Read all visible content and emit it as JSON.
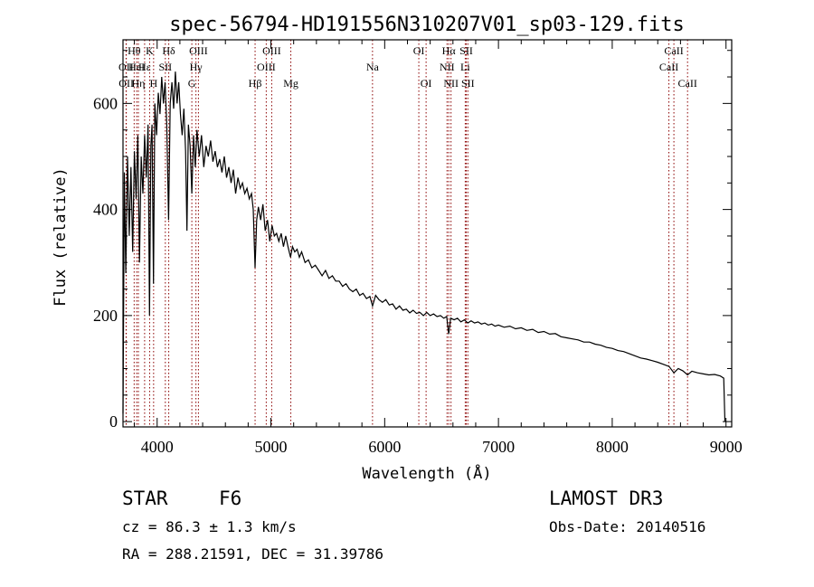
{
  "chart_data": {
    "type": "line",
    "title": "spec-56794-HD191556N310207V01_sp03-129.fits",
    "xlabel": "Wavelength (Å)",
    "ylabel": "Flux (relative)",
    "xlim": [
      3700,
      9050
    ],
    "ylim": [
      -10,
      720
    ],
    "xticks": [
      4000,
      5000,
      6000,
      7000,
      8000,
      9000
    ],
    "yticks": [
      0,
      200,
      400,
      600
    ],
    "x_minor_step": 200,
    "y_minor_step": 50,
    "series": [
      {
        "name": "spectrum",
        "points": [
          [
            3700,
            15
          ],
          [
            3712,
            470
          ],
          [
            3725,
            280
          ],
          [
            3740,
            500
          ],
          [
            3755,
            350
          ],
          [
            3770,
            480
          ],
          [
            3785,
            320
          ],
          [
            3800,
            510
          ],
          [
            3815,
            420
          ],
          [
            3830,
            540
          ],
          [
            3845,
            300
          ],
          [
            3860,
            500
          ],
          [
            3875,
            430
          ],
          [
            3890,
            540
          ],
          [
            3905,
            460
          ],
          [
            3920,
            560
          ],
          [
            3933,
            200
          ],
          [
            3945,
            520
          ],
          [
            3955,
            560
          ],
          [
            3968,
            260
          ],
          [
            3980,
            600
          ],
          [
            3995,
            540
          ],
          [
            4010,
            620
          ],
          [
            4025,
            580
          ],
          [
            4040,
            650
          ],
          [
            4055,
            600
          ],
          [
            4070,
            640
          ],
          [
            4085,
            560
          ],
          [
            4101,
            380
          ],
          [
            4115,
            600
          ],
          [
            4130,
            640
          ],
          [
            4145,
            590
          ],
          [
            4160,
            660
          ],
          [
            4175,
            600
          ],
          [
            4190,
            640
          ],
          [
            4205,
            580
          ],
          [
            4220,
            540
          ],
          [
            4235,
            590
          ],
          [
            4250,
            510
          ],
          [
            4262,
            360
          ],
          [
            4275,
            560
          ],
          [
            4290,
            520
          ],
          [
            4305,
            430
          ],
          [
            4320,
            540
          ],
          [
            4335,
            480
          ],
          [
            4350,
            550
          ],
          [
            4370,
            500
          ],
          [
            4390,
            540
          ],
          [
            4410,
            480
          ],
          [
            4430,
            520
          ],
          [
            4450,
            500
          ],
          [
            4470,
            530
          ],
          [
            4490,
            490
          ],
          [
            4510,
            510
          ],
          [
            4530,
            480
          ],
          [
            4550,
            495
          ],
          [
            4570,
            470
          ],
          [
            4590,
            500
          ],
          [
            4610,
            460
          ],
          [
            4630,
            480
          ],
          [
            4650,
            450
          ],
          [
            4670,
            475
          ],
          [
            4690,
            430
          ],
          [
            4710,
            460
          ],
          [
            4730,
            440
          ],
          [
            4750,
            450
          ],
          [
            4770,
            430
          ],
          [
            4790,
            440
          ],
          [
            4810,
            420
          ],
          [
            4830,
            430
          ],
          [
            4845,
            400
          ],
          [
            4861,
            290
          ],
          [
            4875,
            380
          ],
          [
            4890,
            405
          ],
          [
            4910,
            380
          ],
          [
            4930,
            410
          ],
          [
            4950,
            360
          ],
          [
            4970,
            380
          ],
          [
            4990,
            340
          ],
          [
            5010,
            370
          ],
          [
            5030,
            350
          ],
          [
            5050,
            355
          ],
          [
            5070,
            340
          ],
          [
            5090,
            355
          ],
          [
            5110,
            330
          ],
          [
            5130,
            350
          ],
          [
            5150,
            330
          ],
          [
            5172,
            310
          ],
          [
            5190,
            330
          ],
          [
            5210,
            320
          ],
          [
            5230,
            325
          ],
          [
            5250,
            310
          ],
          [
            5270,
            320
          ],
          [
            5300,
            300
          ],
          [
            5330,
            305
          ],
          [
            5360,
            290
          ],
          [
            5390,
            295
          ],
          [
            5420,
            285
          ],
          [
            5450,
            275
          ],
          [
            5480,
            285
          ],
          [
            5510,
            270
          ],
          [
            5540,
            275
          ],
          [
            5570,
            265
          ],
          [
            5600,
            265
          ],
          [
            5630,
            255
          ],
          [
            5660,
            260
          ],
          [
            5690,
            250
          ],
          [
            5720,
            245
          ],
          [
            5750,
            250
          ],
          [
            5780,
            238
          ],
          [
            5810,
            242
          ],
          [
            5840,
            232
          ],
          [
            5870,
            236
          ],
          [
            5893,
            218
          ],
          [
            5920,
            238
          ],
          [
            5950,
            230
          ],
          [
            5980,
            225
          ],
          [
            6010,
            230
          ],
          [
            6040,
            220
          ],
          [
            6070,
            222
          ],
          [
            6100,
            212
          ],
          [
            6130,
            218
          ],
          [
            6160,
            210
          ],
          [
            6190,
            212
          ],
          [
            6220,
            205
          ],
          [
            6250,
            210
          ],
          [
            6280,
            204
          ],
          [
            6310,
            206
          ],
          [
            6340,
            200
          ],
          [
            6370,
            206
          ],
          [
            6400,
            200
          ],
          [
            6430,
            203
          ],
          [
            6460,
            198
          ],
          [
            6490,
            200
          ],
          [
            6520,
            195
          ],
          [
            6545,
            198
          ],
          [
            6563,
            165
          ],
          [
            6580,
            195
          ],
          [
            6610,
            192
          ],
          [
            6640,
            195
          ],
          [
            6670,
            188
          ],
          [
            6700,
            192
          ],
          [
            6730,
            186
          ],
          [
            6760,
            190
          ],
          [
            6790,
            186
          ],
          [
            6820,
            188
          ],
          [
            6850,
            184
          ],
          [
            6880,
            186
          ],
          [
            6910,
            182
          ],
          [
            6940,
            184
          ],
          [
            6970,
            180
          ],
          [
            7000,
            182
          ],
          [
            7050,
            178
          ],
          [
            7100,
            180
          ],
          [
            7150,
            175
          ],
          [
            7200,
            177
          ],
          [
            7250,
            172
          ],
          [
            7300,
            174
          ],
          [
            7350,
            168
          ],
          [
            7400,
            170
          ],
          [
            7450,
            165
          ],
          [
            7500,
            166
          ],
          [
            7550,
            160
          ],
          [
            7600,
            158
          ],
          [
            7650,
            156
          ],
          [
            7700,
            154
          ],
          [
            7750,
            150
          ],
          [
            7800,
            150
          ],
          [
            7850,
            146
          ],
          [
            7900,
            144
          ],
          [
            7950,
            140
          ],
          [
            8000,
            138
          ],
          [
            8050,
            134
          ],
          [
            8100,
            132
          ],
          [
            8150,
            128
          ],
          [
            8200,
            124
          ],
          [
            8250,
            120
          ],
          [
            8300,
            118
          ],
          [
            8350,
            115
          ],
          [
            8400,
            112
          ],
          [
            8450,
            108
          ],
          [
            8500,
            104
          ],
          [
            8542,
            92
          ],
          [
            8580,
            100
          ],
          [
            8620,
            96
          ],
          [
            8662,
            88
          ],
          [
            8700,
            95
          ],
          [
            8750,
            92
          ],
          [
            8800,
            90
          ],
          [
            8850,
            88
          ],
          [
            8900,
            89
          ],
          [
            8950,
            86
          ],
          [
            8980,
            82
          ],
          [
            8990,
            0
          ]
        ]
      }
    ],
    "spectral_lines": [
      {
        "label": "Hθ",
        "wavelength": 3798,
        "row": 1
      },
      {
        "label": "OII",
        "wavelength": 3727,
        "row": 2
      },
      {
        "label": "OII",
        "wavelength": 3729,
        "row": 3
      },
      {
        "label": "HeI",
        "wavelength": 3820,
        "row": 2
      },
      {
        "label": "Hη",
        "wavelength": 3835,
        "row": 3
      },
      {
        "label": "K",
        "wavelength": 3934,
        "row": 1
      },
      {
        "label": "Hε",
        "wavelength": 3890,
        "row": 2
      },
      {
        "label": "SII",
        "wavelength": 4072,
        "row": 2
      },
      {
        "label": "H",
        "wavelength": 3969,
        "row": 3
      },
      {
        "label": "Hδ",
        "wavelength": 4102,
        "row": 1
      },
      {
        "label": "OIII",
        "wavelength": 4363,
        "row": 1
      },
      {
        "label": "Hγ",
        "wavelength": 4341,
        "row": 2
      },
      {
        "label": "G",
        "wavelength": 4305,
        "row": 3
      },
      {
        "label": "OIII",
        "wavelength": 4959,
        "row": 2
      },
      {
        "label": "OIII",
        "wavelength": 5007,
        "row": 1
      },
      {
        "label": "Hβ",
        "wavelength": 4861,
        "row": 3
      },
      {
        "label": "Mg",
        "wavelength": 5175,
        "row": 3
      },
      {
        "label": "Na",
        "wavelength": 5893,
        "row": 2
      },
      {
        "label": "OI",
        "wavelength": 6300,
        "row": 1
      },
      {
        "label": "OI",
        "wavelength": 6364,
        "row": 3
      },
      {
        "label": "Hα",
        "wavelength": 6563,
        "row": 1
      },
      {
        "label": "NII",
        "wavelength": 6548,
        "row": 2
      },
      {
        "label": "NII",
        "wavelength": 6583,
        "row": 3
      },
      {
        "label": "SII",
        "wavelength": 6717,
        "row": 1
      },
      {
        "label": "Li",
        "wavelength": 6708,
        "row": 2
      },
      {
        "label": "SII",
        "wavelength": 6731,
        "row": 3
      },
      {
        "label": "CaII",
        "wavelength": 8542,
        "row": 1
      },
      {
        "label": "CaII",
        "wavelength": 8498,
        "row": 2
      },
      {
        "label": "CaII",
        "wavelength": 8662,
        "row": 3
      }
    ]
  },
  "footer": {
    "object_class": "STAR",
    "object_type": "F6",
    "survey": "LAMOST DR3",
    "redshift": "cz = 86.3 ± 1.3 km/s",
    "obs_date": "Obs-Date: 20140516",
    "coordinates": "RA = 288.21591, DEC =  31.39786"
  }
}
